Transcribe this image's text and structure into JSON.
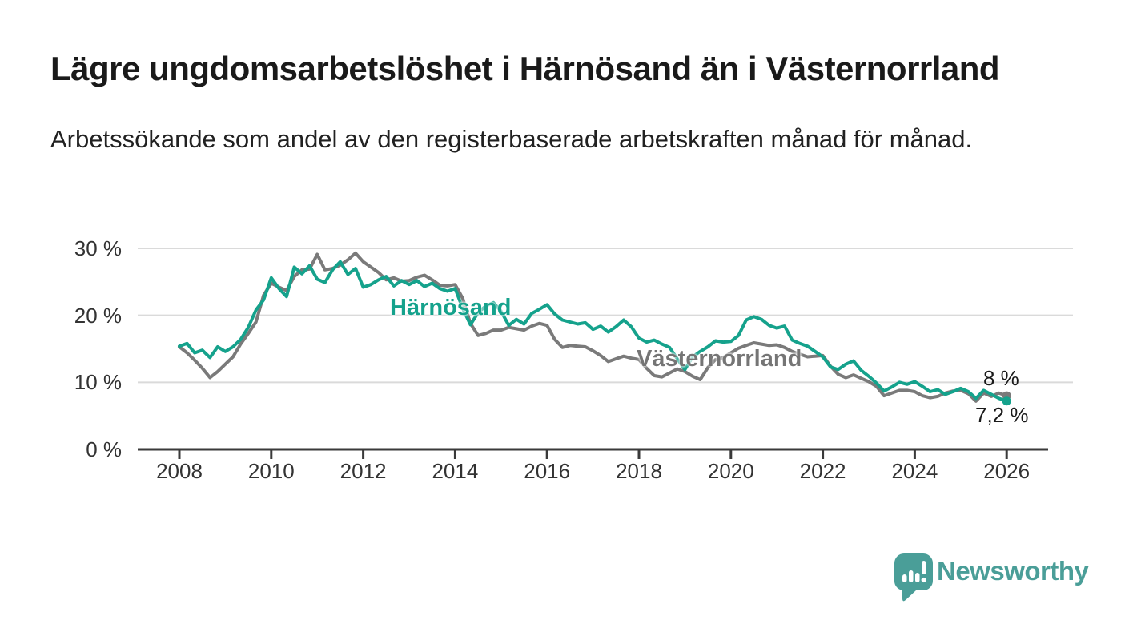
{
  "header": {
    "title": "Lägre ungdomsarbetslöshet i Härnösand än i Västernorrland",
    "subtitle": "Arbetssökande som andel av den registerbaserade arbetskraften månad för månad."
  },
  "chart_data": {
    "type": "line",
    "title": "Lägre ungdomsarbetslöshet i Härnösand än i Västernorrland",
    "subtitle": "Arbetssökande som andel av den registerbaserade arbetskraften månad för månad.",
    "x_unit": "year (monthly data, sampled every 2 months)",
    "x_start_year": 2008,
    "points_per_year": 6,
    "xlim": [
      2007.1,
      2026.9
    ],
    "ylim": [
      0,
      33
    ],
    "grid": true,
    "legend": "inline-labels",
    "x_ticks": [
      {
        "value": 2008,
        "label": "2008"
      },
      {
        "value": 2010,
        "label": "2010"
      },
      {
        "value": 2012,
        "label": "2012"
      },
      {
        "value": 2014,
        "label": "2014"
      },
      {
        "value": 2016,
        "label": "2016"
      },
      {
        "value": 2018,
        "label": "2018"
      },
      {
        "value": 2020,
        "label": "2020"
      },
      {
        "value": 2022,
        "label": "2022"
      },
      {
        "value": 2024,
        "label": "2024"
      },
      {
        "value": 2026,
        "label": "2026"
      }
    ],
    "y_ticks": [
      {
        "value": 0,
        "label": "0 %"
      },
      {
        "value": 10,
        "label": "10 %"
      },
      {
        "value": 20,
        "label": "20 %"
      },
      {
        "value": 30,
        "label": "30 %"
      }
    ],
    "series": [
      {
        "name": "Västernorrland",
        "color": "#7a7a7a",
        "end_label": "8 %",
        "end_value": 8.0,
        "values": [
          15.3,
          14.4,
          13.3,
          12.1,
          10.7,
          11.6,
          12.7,
          13.8,
          15.7,
          17.3,
          19.0,
          23.0,
          24.8,
          24.2,
          23.7,
          25.8,
          26.8,
          26.9,
          29.1,
          26.8,
          27.0,
          27.5,
          28.3,
          29.3,
          28.0,
          27.2,
          26.4,
          25.3,
          25.6,
          25.1,
          25.2,
          25.7,
          26.0,
          25.3,
          24.5,
          24.4,
          24.6,
          22.5,
          18.8,
          17.0,
          17.3,
          17.8,
          17.8,
          18.2,
          18.0,
          17.8,
          18.4,
          18.8,
          18.5,
          16.4,
          15.2,
          15.5,
          15.4,
          15.3,
          14.7,
          14.0,
          13.1,
          13.5,
          13.9,
          13.6,
          13.4,
          12.1,
          11.0,
          10.8,
          11.4,
          12.0,
          11.6,
          10.9,
          10.4,
          12.2,
          13.4,
          13.7,
          14.4,
          15.1,
          15.5,
          15.9,
          15.7,
          15.5,
          15.6,
          15.2,
          14.6,
          14.2,
          13.8,
          13.9,
          14.0,
          12.4,
          11.2,
          10.7,
          11.1,
          10.6,
          10.1,
          9.4,
          8.0,
          8.4,
          8.8,
          8.8,
          8.6,
          8.0,
          7.7,
          7.9,
          8.4,
          8.7,
          8.8,
          8.3,
          7.2,
          8.4,
          7.9,
          8.4,
          8.0
        ]
      },
      {
        "name": "Härnösand",
        "color": "#15a28c",
        "end_label": "7,2 %",
        "end_value": 7.2,
        "values": [
          15.4,
          15.8,
          14.4,
          14.8,
          13.7,
          15.3,
          14.6,
          15.3,
          16.4,
          18.2,
          20.8,
          22.3,
          25.6,
          24.0,
          22.8,
          27.2,
          26.2,
          27.4,
          25.4,
          24.9,
          26.8,
          28.0,
          26.1,
          27.0,
          24.2,
          24.6,
          25.3,
          25.8,
          24.4,
          25.2,
          24.6,
          25.2,
          24.3,
          24.8,
          24.0,
          23.6,
          24.0,
          21.0,
          18.6,
          20.4,
          21.4,
          21.9,
          20.6,
          18.5,
          19.4,
          18.7,
          20.3,
          20.9,
          21.6,
          20.2,
          19.3,
          19.0,
          18.7,
          18.9,
          17.9,
          18.4,
          17.5,
          18.3,
          19.3,
          18.3,
          16.6,
          16.0,
          16.3,
          15.7,
          15.2,
          13.5,
          11.9,
          13.8,
          14.6,
          15.3,
          16.2,
          16.0,
          16.1,
          17.0,
          19.3,
          19.8,
          19.4,
          18.5,
          18.1,
          18.4,
          16.3,
          15.8,
          15.4,
          14.6,
          13.8,
          12.3,
          11.9,
          12.7,
          13.2,
          11.8,
          10.9,
          9.9,
          8.7,
          9.3,
          10.0,
          9.7,
          10.1,
          9.4,
          8.6,
          8.9,
          8.2,
          8.6,
          9.1,
          8.6,
          7.6,
          8.8,
          8.2,
          7.6,
          7.2
        ]
      }
    ]
  },
  "annotations": {
    "harnosand_label": "Härnösand",
    "vasternorrland_label": "Västernorrland",
    "end_label_vasternorrland": "8 %",
    "end_label_harnosand": "7,2 %"
  },
  "footer": {
    "brand": "Newsworthy",
    "brand_color": "#4a9e98",
    "logo_icon": "bar-chart-speech-bubble-icon"
  },
  "colors": {
    "harnosand_line": "#15a28c",
    "vasternorrland_line": "#7a7a7a",
    "grid": "#dadada",
    "axis": "#3a3a3a",
    "text": "#333333"
  }
}
